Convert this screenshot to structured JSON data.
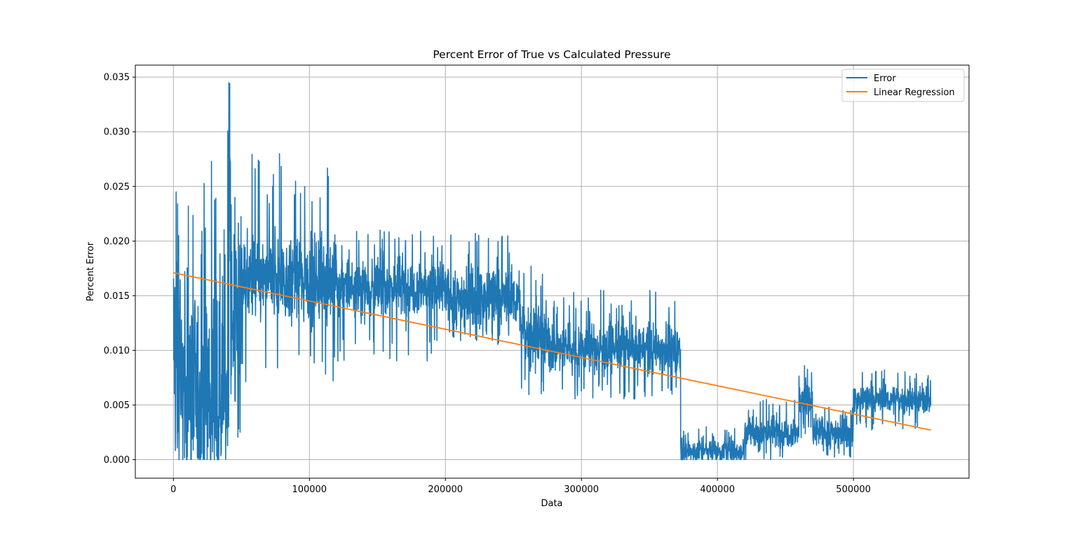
{
  "chart_data": {
    "type": "line",
    "title": "Percent Error of True vs Calculated Pressure",
    "xlabel": "Data",
    "ylabel": "Percent Error",
    "xlim": [
      -28000,
      585000
    ],
    "ylim": [
      -0.0017,
      0.0361
    ],
    "xticks": [
      0,
      100000,
      200000,
      300000,
      400000,
      500000
    ],
    "xtick_labels": [
      "0",
      "100000",
      "200000",
      "300000",
      "400000",
      "500000"
    ],
    "yticks": [
      0.0,
      0.005,
      0.01,
      0.015,
      0.02,
      0.025,
      0.03,
      0.035
    ],
    "ytick_labels": [
      "0.000",
      "0.005",
      "0.010",
      "0.015",
      "0.020",
      "0.025",
      "0.030",
      "0.035"
    ],
    "grid": true,
    "legend_position": "top-right",
    "series": [
      {
        "name": "Error",
        "color": "#1f77b4",
        "segments": [
          {
            "x0": 0,
            "x1": 5000,
            "mean": 0.011,
            "noise": 0.009,
            "spike": 0.0245,
            "floor": 0.0
          },
          {
            "x0": 5000,
            "x1": 20000,
            "mean": 0.006,
            "noise": 0.008,
            "spike": 0.0232,
            "floor": 0.0
          },
          {
            "x0": 20000,
            "x1": 40000,
            "mean": 0.007,
            "noise": 0.008,
            "spike": 0.0273,
            "floor": 0.0
          },
          {
            "x0": 40000,
            "x1": 42000,
            "mean": 0.022,
            "noise": 0.008,
            "spike": 0.0345,
            "floor": 0.0
          },
          {
            "x0": 42000,
            "x1": 50000,
            "mean": 0.012,
            "noise": 0.007,
            "spike": 0.024,
            "floor": 0.0003
          },
          {
            "x0": 50000,
            "x1": 120000,
            "mean": 0.0165,
            "noise": 0.0032,
            "spike": 0.028,
            "floor": 0.007
          },
          {
            "x0": 120000,
            "x1": 200000,
            "mean": 0.0158,
            "noise": 0.0022,
            "spike": 0.021,
            "floor": 0.009
          },
          {
            "x0": 200000,
            "x1": 255000,
            "mean": 0.0148,
            "noise": 0.0022,
            "spike": 0.0207,
            "floor": 0.0105
          },
          {
            "x0": 255000,
            "x1": 275000,
            "mean": 0.0115,
            "noise": 0.0025,
            "spike": 0.0177,
            "floor": 0.0057
          },
          {
            "x0": 275000,
            "x1": 373000,
            "mean": 0.0102,
            "noise": 0.0018,
            "spike": 0.0155,
            "floor": 0.0055
          },
          {
            "x0": 373000,
            "x1": 420000,
            "mean": 0.0008,
            "noise": 0.0009,
            "spike": 0.003,
            "floor": 0.0
          },
          {
            "x0": 420000,
            "x1": 460000,
            "mean": 0.0025,
            "noise": 0.0012,
            "spike": 0.0055,
            "floor": 0.0
          },
          {
            "x0": 460000,
            "x1": 470000,
            "mean": 0.0055,
            "noise": 0.0015,
            "spike": 0.0086,
            "floor": 0.002
          },
          {
            "x0": 470000,
            "x1": 500000,
            "mean": 0.0025,
            "noise": 0.0012,
            "spike": 0.0048,
            "floor": 0.0
          },
          {
            "x0": 500000,
            "x1": 557000,
            "mean": 0.0055,
            "noise": 0.001,
            "spike": 0.0082,
            "floor": 0.0027
          }
        ]
      },
      {
        "name": "Linear Regression",
        "color": "#ff7f0e",
        "x": [
          0,
          557000
        ],
        "y": [
          0.0171,
          0.0027
        ]
      }
    ]
  }
}
